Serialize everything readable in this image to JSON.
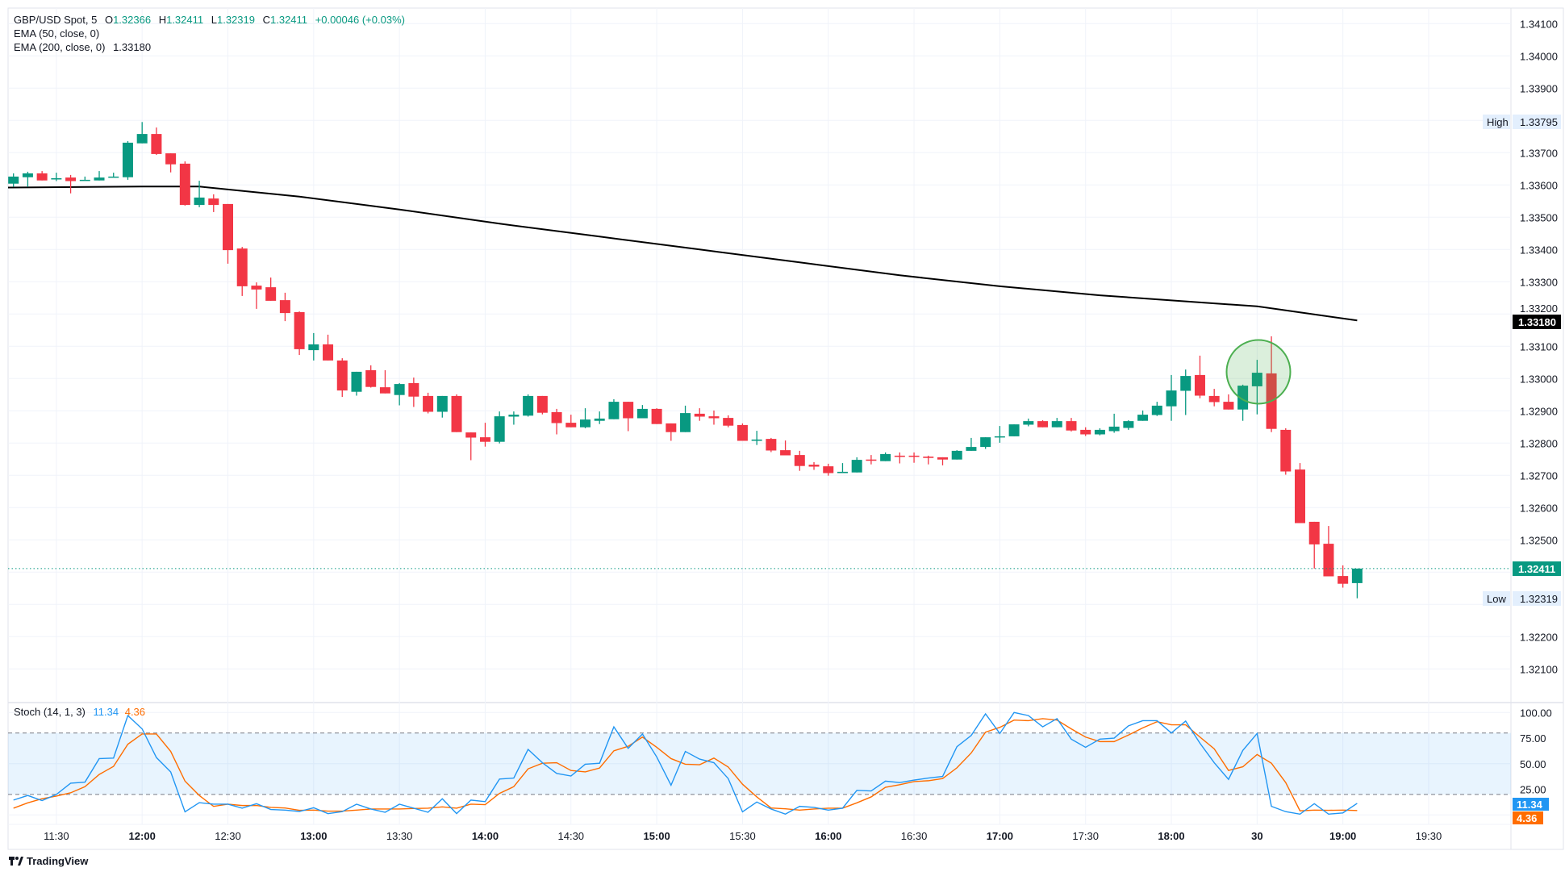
{
  "legend": {
    "symbol": "GBP/USD Spot, 5",
    "o_label": "O",
    "o_value": "1.32366",
    "h_label": "H",
    "h_value": "1.32411",
    "l_label": "L",
    "l_value": "1.32319",
    "c_label": "C",
    "c_value": "1.32411",
    "change": "+0.00046 (+0.03%)",
    "ema50": "EMA (50, close, 0)",
    "ema200": "EMA (200, close, 0)",
    "ema200_value": "1.33180"
  },
  "badges": {
    "high_label": "High",
    "high_value": "1.33795",
    "low_label": "Low",
    "low_value": "1.32319",
    "ema_value": "1.33180",
    "last_value": "1.32411",
    "stoch_k_value": "11.34",
    "stoch_d_value": "4.36"
  },
  "stoch_legend": {
    "name": "Stoch (14, 1, 3)",
    "k": "11.34",
    "d": "4.36"
  },
  "branding": {
    "logo_text": "TradingView"
  },
  "colors": {
    "up": "#089981",
    "down": "#f23645",
    "ema200": "#000000",
    "stoch_k": "#2196f3",
    "stoch_d": "#ff6d00",
    "highlight": "#4caf50"
  },
  "chart_data": {
    "type": "candlestick",
    "symbol": "GBP/USD Spot",
    "interval_minutes": 5,
    "price_ticks": [
      "1.34100",
      "1.34000",
      "1.33900",
      "1.33700",
      "1.33600",
      "1.33500",
      "1.33400",
      "1.33300",
      "1.33200",
      "1.33100",
      "1.33000",
      "1.32900",
      "1.32800",
      "1.32700",
      "1.32600",
      "1.32500",
      "1.32200",
      "1.32100"
    ],
    "time_ticks": [
      {
        "label": "11:30",
        "time": "11:30",
        "major": false
      },
      {
        "label": "12:00",
        "time": "12:00",
        "major": true
      },
      {
        "label": "12:30",
        "time": "12:30",
        "major": false
      },
      {
        "label": "13:00",
        "time": "13:00",
        "major": true
      },
      {
        "label": "13:30",
        "time": "13:30",
        "major": false
      },
      {
        "label": "14:00",
        "time": "14:00",
        "major": true
      },
      {
        "label": "14:30",
        "time": "14:30",
        "major": false
      },
      {
        "label": "15:00",
        "time": "15:00",
        "major": true
      },
      {
        "label": "15:30",
        "time": "15:30",
        "major": false
      },
      {
        "label": "16:00",
        "time": "16:00",
        "major": true
      },
      {
        "label": "16:30",
        "time": "16:30",
        "major": false
      },
      {
        "label": "17:00",
        "time": "17:00",
        "major": true
      },
      {
        "label": "17:30",
        "time": "17:30",
        "major": false
      },
      {
        "label": "18:00",
        "time": "18:00",
        "major": true
      },
      {
        "label": "30",
        "time": "18:30",
        "major": true
      },
      {
        "label": "19:00",
        "time": "19:00",
        "major": true
      },
      {
        "label": "19:30",
        "time": "19:30",
        "major": false
      }
    ],
    "candles_columns": [
      "time",
      "open",
      "high",
      "low",
      "close"
    ],
    "candles": [
      [
        "11:15",
        1.33604,
        1.33636,
        1.33594,
        1.33626
      ],
      [
        "11:20",
        1.33624,
        1.33641,
        1.33594,
        1.33636
      ],
      [
        "11:25",
        1.33636,
        1.33643,
        1.33614,
        1.33614
      ],
      [
        "11:30",
        1.33617,
        1.33638,
        1.33612,
        1.33621
      ],
      [
        "11:35",
        1.33623,
        1.33631,
        1.33574,
        1.33612
      ],
      [
        "11:40",
        1.33614,
        1.33626,
        1.33614,
        1.33616
      ],
      [
        "11:45",
        1.33614,
        1.33643,
        1.33614,
        1.33623
      ],
      [
        "11:50",
        1.33623,
        1.33638,
        1.33623,
        1.33626
      ],
      [
        "11:55",
        1.33624,
        1.33736,
        1.33616,
        1.33731
      ],
      [
        "12:00",
        1.33729,
        1.33795,
        1.33729,
        1.33758
      ],
      [
        "12:05",
        1.33758,
        1.33778,
        1.33693,
        1.33696
      ],
      [
        "12:10",
        1.33698,
        1.33698,
        1.33639,
        1.33664
      ],
      [
        "12:15",
        1.33666,
        1.33673,
        1.33536,
        1.33538
      ],
      [
        "12:20",
        1.33538,
        1.33613,
        1.33531,
        1.33561
      ],
      [
        "12:25",
        1.33558,
        1.33571,
        1.33516,
        1.33538
      ],
      [
        "12:30",
        1.33541,
        1.33541,
        1.33356,
        1.33398
      ],
      [
        "12:35",
        1.33403,
        1.33408,
        1.33256,
        1.33286
      ],
      [
        "12:40",
        1.33288,
        1.33298,
        1.33216,
        1.33276
      ],
      [
        "12:45",
        1.33283,
        1.33313,
        1.33241,
        1.33241
      ],
      [
        "12:50",
        1.33243,
        1.33266,
        1.33178,
        1.33203
      ],
      [
        "12:55",
        1.33206,
        1.33208,
        1.33073,
        1.33091
      ],
      [
        "13:00",
        1.33088,
        1.33141,
        1.33056,
        1.33106
      ],
      [
        "13:05",
        1.33106,
        1.33136,
        1.33056,
        1.33056
      ],
      [
        "13:10",
        1.33056,
        1.33063,
        1.32943,
        1.32963
      ],
      [
        "13:15",
        1.32959,
        1.33021,
        1.32947,
        1.33021
      ],
      [
        "13:20",
        1.33026,
        1.33041,
        1.32972,
        1.32974
      ],
      [
        "13:25",
        1.32973,
        1.33026,
        1.32954,
        1.32954
      ],
      [
        "13:30",
        1.32949,
        1.32986,
        1.32917,
        1.32983
      ],
      [
        "13:35",
        1.32986,
        1.33003,
        1.32912,
        1.32944
      ],
      [
        "13:40",
        1.32946,
        1.32956,
        1.32892,
        1.32897
      ],
      [
        "13:45",
        1.32897,
        1.32946,
        1.32879,
        1.32946
      ],
      [
        "13:50",
        1.32946,
        1.32951,
        1.32834,
        1.32834
      ],
      [
        "13:55",
        1.32833,
        1.32833,
        1.32747,
        1.32817
      ],
      [
        "14:00",
        1.32818,
        1.32863,
        1.32789,
        1.32804
      ],
      [
        "14:05",
        1.32804,
        1.32898,
        1.32799,
        1.32883
      ],
      [
        "14:10",
        1.32882,
        1.32898,
        1.32857,
        1.32888
      ],
      [
        "14:15",
        1.32885,
        1.32951,
        1.32882,
        1.32946
      ],
      [
        "14:20",
        1.32946,
        1.32946,
        1.32889,
        1.32894
      ],
      [
        "14:25",
        1.32896,
        1.32906,
        1.32827,
        1.32862
      ],
      [
        "14:30",
        1.32863,
        1.32888,
        1.32849,
        1.32849
      ],
      [
        "14:35",
        1.32849,
        1.32908,
        1.32846,
        1.32873
      ],
      [
        "14:40",
        1.32869,
        1.32898,
        1.32859,
        1.32876
      ],
      [
        "14:45",
        1.32874,
        1.32936,
        1.32874,
        1.32928
      ],
      [
        "14:50",
        1.32928,
        1.32928,
        1.32837,
        1.32877
      ],
      [
        "14:55",
        1.32877,
        1.32918,
        1.32877,
        1.32906
      ],
      [
        "15:00",
        1.32906,
        1.32908,
        1.32859,
        1.32859
      ],
      [
        "15:05",
        1.32861,
        1.32861,
        1.32807,
        1.32834
      ],
      [
        "15:10",
        1.32834,
        1.32916,
        1.32834,
        1.32893
      ],
      [
        "15:15",
        1.32891,
        1.32908,
        1.32869,
        1.32882
      ],
      [
        "15:20",
        1.32883,
        1.32901,
        1.32857,
        1.32877
      ],
      [
        "15:25",
        1.32878,
        1.32886,
        1.32849,
        1.32854
      ],
      [
        "15:30",
        1.32856,
        1.32861,
        1.32807,
        1.32807
      ],
      [
        "15:35",
        1.32807,
        1.32838,
        1.32794,
        1.32811
      ],
      [
        "15:40",
        1.32813,
        1.32816,
        1.32772,
        1.32777
      ],
      [
        "15:45",
        1.32778,
        1.32808,
        1.32762,
        1.32762
      ],
      [
        "15:50",
        1.32763,
        1.32776,
        1.32714,
        1.32729
      ],
      [
        "15:55",
        1.32733,
        1.32741,
        1.32717,
        1.32727
      ],
      [
        "16:00",
        1.32728,
        1.32736,
        1.32699,
        1.32707
      ],
      [
        "16:05",
        1.32707,
        1.32738,
        1.32707,
        1.32711
      ],
      [
        "16:10",
        1.32709,
        1.32756,
        1.32709,
        1.32748
      ],
      [
        "16:15",
        1.32749,
        1.32763,
        1.32734,
        1.32746
      ],
      [
        "16:20",
        1.32744,
        1.32771,
        1.32744,
        1.32766
      ],
      [
        "16:25",
        1.32761,
        1.32771,
        1.32737,
        1.32758
      ],
      [
        "16:30",
        1.32761,
        1.32771,
        1.32739,
        1.32758
      ],
      [
        "16:35",
        1.32758,
        1.32761,
        1.32734,
        1.32754
      ],
      [
        "16:40",
        1.32756,
        1.32756,
        1.32731,
        1.32749
      ],
      [
        "16:45",
        1.32749,
        1.32778,
        1.32749,
        1.32776
      ],
      [
        "16:50",
        1.32776,
        1.32816,
        1.32776,
        1.32788
      ],
      [
        "16:55",
        1.32788,
        1.32818,
        1.32782,
        1.32818
      ],
      [
        "17:00",
        1.32818,
        1.32853,
        1.32801,
        1.32821
      ],
      [
        "17:05",
        1.32821,
        1.32858,
        1.32821,
        1.32858
      ],
      [
        "17:10",
        1.32857,
        1.32876,
        1.32852,
        1.32868
      ],
      [
        "17:15",
        1.32868,
        1.32871,
        1.32849,
        1.32849
      ],
      [
        "17:20",
        1.32849,
        1.32878,
        1.32849,
        1.32868
      ],
      [
        "17:25",
        1.32868,
        1.32878,
        1.32836,
        1.32839
      ],
      [
        "17:30",
        1.32841,
        1.32849,
        1.32822,
        1.32827
      ],
      [
        "17:35",
        1.32827,
        1.32846,
        1.32824,
        1.32841
      ],
      [
        "17:40",
        1.32837,
        1.32891,
        1.32832,
        1.32851
      ],
      [
        "17:45",
        1.32847,
        1.32871,
        1.32841,
        1.32868
      ],
      [
        "17:50",
        1.32869,
        1.32901,
        1.32869,
        1.32888
      ],
      [
        "17:55",
        1.32887,
        1.32928,
        1.32884,
        1.32916
      ],
      [
        "18:00",
        1.32914,
        1.33011,
        1.32869,
        1.32963
      ],
      [
        "18:05",
        1.32962,
        1.33028,
        1.32887,
        1.33008
      ],
      [
        "18:10",
        1.33011,
        1.33071,
        1.32939,
        1.32947
      ],
      [
        "18:15",
        1.32946,
        1.32968,
        1.32914,
        1.32927
      ],
      [
        "18:20",
        1.32928,
        1.32951,
        1.32904,
        1.32904
      ],
      [
        "18:25",
        1.32904,
        1.32981,
        1.32869,
        1.32978
      ],
      [
        "18:30",
        1.32976,
        1.33058,
        1.32889,
        1.33018
      ],
      [
        "18:35",
        1.33016,
        1.33131,
        1.32834,
        1.32844
      ],
      [
        "18:40",
        1.32841,
        1.32846,
        1.32702,
        1.32712
      ],
      [
        "18:45",
        1.32718,
        1.32738,
        1.32552,
        1.32552
      ],
      [
        "18:50",
        1.32556,
        1.32556,
        1.32411,
        1.32486
      ],
      [
        "18:55",
        1.32488,
        1.32543,
        1.32387,
        1.32387
      ],
      [
        "19:00",
        1.32388,
        1.32421,
        1.32352,
        1.32364
      ],
      [
        "19:05",
        1.32366,
        1.32411,
        1.32319,
        1.32411
      ]
    ],
    "ema200": {
      "times": [
        "11:15",
        "12:00",
        "12:20",
        "12:55",
        "13:30",
        "14:05",
        "14:40",
        "15:15",
        "15:50",
        "16:25",
        "17:00",
        "17:35",
        "18:10",
        "18:30",
        "18:45",
        "19:05"
      ],
      "values": [
        1.33592,
        1.33595,
        1.33595,
        1.33564,
        1.33524,
        1.3348,
        1.3344,
        1.334,
        1.3336,
        1.3332,
        1.33286,
        1.33258,
        1.33236,
        1.33224,
        1.33205,
        1.3318
      ]
    },
    "last_price": 1.32411,
    "high": 1.33795,
    "low": 1.32319,
    "highlight_time": "18:30",
    "stoch": {
      "ylim": [
        0,
        100
      ],
      "ticks": [
        "100.00",
        "75.00",
        "50.00",
        "25.00"
      ],
      "upper_band": 80,
      "lower_band": 20,
      "k": [
        14.5,
        19,
        14,
        20,
        31,
        32,
        55,
        55.5,
        97,
        84,
        56,
        42,
        3,
        12,
        10.5,
        10.5,
        6.6,
        11,
        5.3,
        4.7,
        3.4,
        7,
        1.3,
        3.2,
        10.5,
        5.8,
        2.6,
        10.5,
        6.6,
        2.6,
        15.8,
        1.3,
        14.5,
        13,
        35,
        36,
        64,
        51,
        40.5,
        38,
        49.5,
        50.5,
        86,
        65,
        79,
        56.6,
        29,
        62,
        54.5,
        51,
        35.5,
        3,
        12.6,
        5.8,
        0.8,
        8.4,
        7.4,
        4.7,
        6.6,
        24,
        23.4,
        33,
        31.6,
        34,
        36,
        37.6,
        66.6,
        77.6,
        98.7,
        79.5,
        100,
        97,
        86,
        94,
        74,
        66,
        74,
        75,
        87,
        92,
        92,
        80,
        91.6,
        70,
        51,
        34.7,
        63,
        79.5,
        8.4,
        3.2,
        0.8,
        11,
        0.8,
        2,
        11.34
      ],
      "d": [
        6.6,
        11.8,
        15.8,
        18.4,
        21.6,
        27.6,
        39.5,
        47.4,
        69,
        79,
        79,
        62,
        33,
        19,
        8.4,
        10.5,
        9.2,
        9.2,
        7.4,
        6.8,
        4.5,
        4.7,
        3.7,
        3.7,
        4.7,
        5.8,
        5.8,
        5.8,
        6.3,
        6.6,
        7.9,
        6.6,
        10.5,
        10,
        21,
        27.6,
        45,
        50.5,
        51,
        43.4,
        42,
        45.8,
        62.6,
        67,
        76,
        66,
        55,
        49.5,
        49,
        55.5,
        46.8,
        30,
        17.6,
        6.8,
        6,
        4.7,
        5.8,
        6.6,
        6.6,
        11.8,
        17.6,
        27,
        29.5,
        32.6,
        33.4,
        35.5,
        46,
        60.5,
        80.8,
        85.5,
        92.6,
        92,
        94,
        92.6,
        84,
        76,
        71.6,
        71.6,
        78,
        85,
        91,
        88,
        88,
        76,
        64.5,
        43.4,
        47,
        59,
        50.5,
        31.6,
        4,
        4.7,
        4.5,
        4.7,
        4.36
      ]
    }
  }
}
